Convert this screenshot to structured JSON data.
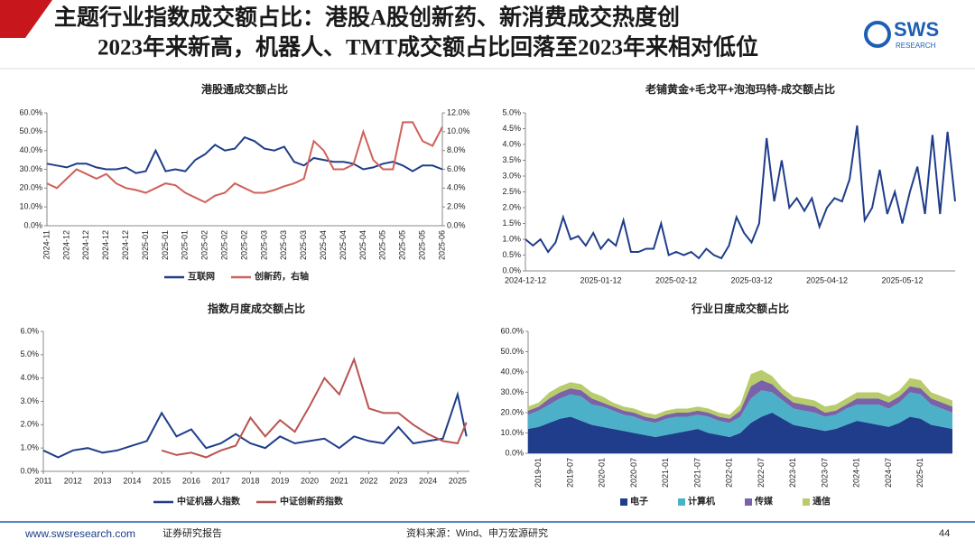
{
  "header": {
    "title": [
      "主题行业指数成交额占比：港股A股创新药、新消费成交热度创",
      "2023年来新高，机器人、TMT成交额占比回落至2023年来相对低位"
    ],
    "logo": "SWS",
    "logo_sub": "RESEARCH"
  },
  "footer": {
    "website": "www.swsresearch.com",
    "report": "证券研究报告",
    "source": "资料来源：Wind、申万宏源研究",
    "page": "44"
  },
  "chart_data": [
    {
      "type": "line",
      "title": "港股通成交额占比",
      "categories": [
        "2024-11",
        null,
        "2024-12",
        null,
        "2024-12",
        null,
        "2024-12",
        null,
        "2024-12",
        null,
        "2025-01",
        null,
        "2025-01",
        null,
        "2025-01",
        null,
        "2025-02",
        null,
        "2025-02",
        null,
        "2025-02",
        null,
        "2025-03",
        null,
        "2025-03",
        null,
        "2025-03",
        null,
        "2025-04",
        null,
        "2025-04",
        null,
        "2025-04",
        null,
        "2025-05",
        null,
        "2025-05",
        null,
        "2025-05",
        null,
        "2025-06"
      ],
      "series": [
        {
          "name": "互联网",
          "color": "#1f3d8a",
          "values": [
            33,
            32,
            31,
            33,
            33,
            31,
            30,
            30,
            31,
            28,
            29,
            40,
            29,
            30,
            29,
            35,
            38,
            43,
            40,
            41,
            47,
            45,
            41,
            40,
            42,
            34,
            32,
            36,
            35,
            34,
            34,
            33,
            30,
            31,
            33,
            34,
            32,
            29,
            32,
            32,
            30
          ]
        },
        {
          "name": "创新药，右轴",
          "color": "#d0605a",
          "axis": "y2",
          "values": [
            4.5,
            4.0,
            5,
            6,
            5.5,
            5,
            5.5,
            4.5,
            4,
            3.8,
            3.5,
            4,
            4.5,
            4.3,
            3.5,
            3,
            2.5,
            3.2,
            3.5,
            4.5,
            4,
            3.5,
            3.5,
            3.8,
            4.2,
            4.5,
            5,
            9,
            8,
            6,
            6,
            6.5,
            10,
            7,
            6,
            6,
            11,
            11,
            9,
            8.5,
            10.5
          ]
        }
      ],
      "ylim": [
        0,
        60
      ],
      "yticks": [
        {
          "value": 0,
          "label": "0.0%"
        },
        {
          "value": 10,
          "label": "10.0%"
        },
        {
          "value": 20,
          "label": "20.0%"
        },
        {
          "value": 30,
          "label": "30.0%"
        },
        {
          "value": 40,
          "label": "40.0%"
        },
        {
          "value": 50,
          "label": "50.0%"
        },
        {
          "value": 60,
          "label": "60.0%"
        }
      ],
      "y2lim": [
        0,
        12
      ],
      "y2ticks": [
        {
          "value": 0,
          "label": "0.0%"
        },
        {
          "value": 2,
          "label": "2.0%"
        },
        {
          "value": 4,
          "label": "4.0%"
        },
        {
          "value": 6,
          "label": "6.0%"
        },
        {
          "value": 8,
          "label": "8.0%"
        },
        {
          "value": 10,
          "label": "10.0%"
        },
        {
          "value": 12,
          "label": "12.0%"
        }
      ]
    },
    {
      "type": "line",
      "title": "老铺黄金+毛戈平+泡泡玛特-成交额占比",
      "color": "#1f3d8a",
      "categories": [
        "2024-12-12",
        null,
        null,
        null,
        null,
        null,
        null,
        null,
        null,
        null,
        "2025-01-12",
        null,
        null,
        null,
        null,
        null,
        null,
        null,
        null,
        null,
        "2025-02-12",
        null,
        null,
        null,
        null,
        null,
        null,
        null,
        null,
        null,
        "2025-03-12",
        null,
        null,
        null,
        null,
        null,
        null,
        null,
        null,
        null,
        "2025-04-12",
        null,
        null,
        null,
        null,
        null,
        null,
        null,
        null,
        null,
        "2025-05-12",
        null,
        null,
        null,
        null,
        null,
        null,
        null
      ],
      "values": [
        1.0,
        0.8,
        1.0,
        0.6,
        0.9,
        1.7,
        1.0,
        1.1,
        0.8,
        1.2,
        0.7,
        1.0,
        0.8,
        1.6,
        0.6,
        0.6,
        0.7,
        0.7,
        1.5,
        0.5,
        0.6,
        0.5,
        0.6,
        0.4,
        0.7,
        0.5,
        0.4,
        0.8,
        1.7,
        1.2,
        0.9,
        1.5,
        4.2,
        2.2,
        3.5,
        2.0,
        2.3,
        1.9,
        2.3,
        1.4,
        2.0,
        2.3,
        2.2,
        2.9,
        4.6,
        1.6,
        2.0,
        3.2,
        1.8,
        2.5,
        1.5,
        2.5,
        3.3,
        1.8,
        4.3,
        1.8,
        4.4,
        2.2
      ],
      "ylim": [
        0,
        5
      ],
      "yticks": [
        {
          "value": 0,
          "label": "0.0%"
        },
        {
          "value": 0.5,
          "label": "0.5%"
        },
        {
          "value": 1,
          "label": "1.0%"
        },
        {
          "value": 1.5,
          "label": "1.5%"
        },
        {
          "value": 2,
          "label": "2.0%"
        },
        {
          "value": 2.5,
          "label": "2.5%"
        },
        {
          "value": 3,
          "label": "3.0%"
        },
        {
          "value": 3.5,
          "label": "3.5%"
        },
        {
          "value": 4,
          "label": "4.0%"
        },
        {
          "value": 4.5,
          "label": "4.5%"
        },
        {
          "value": 5,
          "label": "5.0%"
        }
      ]
    },
    {
      "type": "line",
      "title": "指数月度成交额占比",
      "x": [
        2011,
        2011.5,
        2012,
        2012.5,
        2013,
        2013.5,
        2014,
        2014.5,
        2015,
        2015.5,
        2016,
        2016.5,
        2017,
        2017.5,
        2018,
        2018.5,
        2019,
        2019.5,
        2020,
        2020.5,
        2021,
        2021.5,
        2022,
        2022.5,
        2023,
        2023.5,
        2024,
        2024.5,
        2025,
        2025.3
      ],
      "series": [
        {
          "name": "中证机器人指数",
          "color": "#1f3d8a",
          "values": [
            0.9,
            0.6,
            0.9,
            1.0,
            0.8,
            0.9,
            1.1,
            1.3,
            2.5,
            1.5,
            1.8,
            1.0,
            1.2,
            1.6,
            1.2,
            1.0,
            1.5,
            1.2,
            1.3,
            1.4,
            1.0,
            1.5,
            1.3,
            1.2,
            1.9,
            1.2,
            1.3,
            1.4,
            3.3,
            1.5
          ]
        },
        {
          "name": "中证创新药指数",
          "color": "#b85450",
          "values": [
            null,
            null,
            null,
            null,
            null,
            null,
            null,
            null,
            0.9,
            0.7,
            0.8,
            0.6,
            0.9,
            1.1,
            2.3,
            1.5,
            2.2,
            1.7,
            2.8,
            4.0,
            3.3,
            4.8,
            2.7,
            2.5,
            2.5,
            2.0,
            1.6,
            1.3,
            1.2,
            2.1
          ]
        }
      ],
      "xlim": [
        2011,
        2025.4
      ],
      "xticks": [
        2011,
        2012,
        2013,
        2014,
        2015,
        2016,
        2017,
        2018,
        2019,
        2020,
        2021,
        2022,
        2023,
        2024,
        2025
      ],
      "ylim": [
        0,
        6
      ],
      "yticks": [
        {
          "value": 0,
          "label": "0.0%"
        },
        {
          "value": 1,
          "label": "1.0%"
        },
        {
          "value": 2,
          "label": "2.0%"
        },
        {
          "value": 3,
          "label": "3.0%"
        },
        {
          "value": 4,
          "label": "4.0%"
        },
        {
          "value": 5,
          "label": "5.0%"
        },
        {
          "value": 6,
          "label": "6.0%"
        }
      ]
    },
    {
      "type": "area",
      "title": "行业日度成交额占比",
      "stacked": true,
      "categories": [
        null,
        "2019-01",
        null,
        null,
        "2019-07",
        null,
        null,
        "2020-01",
        null,
        null,
        "2020-07",
        null,
        null,
        "2021-01",
        null,
        null,
        "2021-07",
        null,
        null,
        "2022-01",
        null,
        null,
        "2022-07",
        null,
        null,
        "2023-01",
        null,
        null,
        "2023-07",
        null,
        null,
        "2024-01",
        null,
        null,
        "2024-07",
        null,
        null,
        "2025-01",
        null,
        null,
        null
      ],
      "series": [
        {
          "name": "电子",
          "color": "#1f3d8a",
          "values": [
            12,
            13,
            15,
            17,
            18,
            16,
            14,
            13,
            12,
            11,
            10,
            9,
            8,
            9,
            10,
            11,
            12,
            10,
            9,
            8,
            10,
            15,
            18,
            20,
            17,
            14,
            13,
            12,
            11,
            12,
            14,
            16,
            15,
            14,
            13,
            15,
            18,
            17,
            14,
            13,
            12
          ]
        },
        {
          "name": "计算机",
          "color": "#4bb0c8",
          "values": [
            7,
            8,
            9,
            10,
            11,
            12,
            10,
            10,
            9,
            8,
            8,
            7,
            7,
            8,
            8,
            7,
            7,
            8,
            7,
            7,
            8,
            12,
            13,
            10,
            9,
            8,
            8,
            8,
            7,
            7,
            8,
            8,
            9,
            10,
            9,
            10,
            12,
            12,
            10,
            9,
            8
          ]
        },
        {
          "name": "传媒",
          "color": "#7a62a8",
          "values": [
            2,
            2,
            3,
            3,
            3,
            3,
            3,
            2,
            2,
            2,
            2,
            2,
            2,
            2,
            2,
            2,
            2,
            2,
            2,
            2,
            3,
            6,
            5,
            4,
            3,
            3,
            3,
            3,
            2,
            2,
            2,
            3,
            3,
            3,
            3,
            3,
            3,
            3,
            3,
            3,
            3
          ]
        },
        {
          "name": "通信",
          "color": "#b8cc6c",
          "values": [
            2,
            2,
            3,
            3,
            3,
            3,
            3,
            3,
            2,
            2,
            2,
            2,
            2,
            2,
            2,
            2,
            2,
            2,
            2,
            2,
            3,
            6,
            5,
            4,
            3,
            3,
            3,
            3,
            3,
            3,
            3,
            3,
            3,
            3,
            3,
            3,
            4,
            4,
            3,
            3,
            3
          ]
        }
      ],
      "ylim": [
        0,
        60
      ],
      "yticks": [
        {
          "value": 0,
          "label": "0.0%"
        },
        {
          "value": 10,
          "label": "10.0%"
        },
        {
          "value": 20,
          "label": "20.0%"
        },
        {
          "value": 30,
          "label": "30.0%"
        },
        {
          "value": 40,
          "label": "40.0%"
        },
        {
          "value": 50,
          "label": "50.0%"
        },
        {
          "value": 60,
          "label": "60.0%"
        }
      ]
    }
  ]
}
